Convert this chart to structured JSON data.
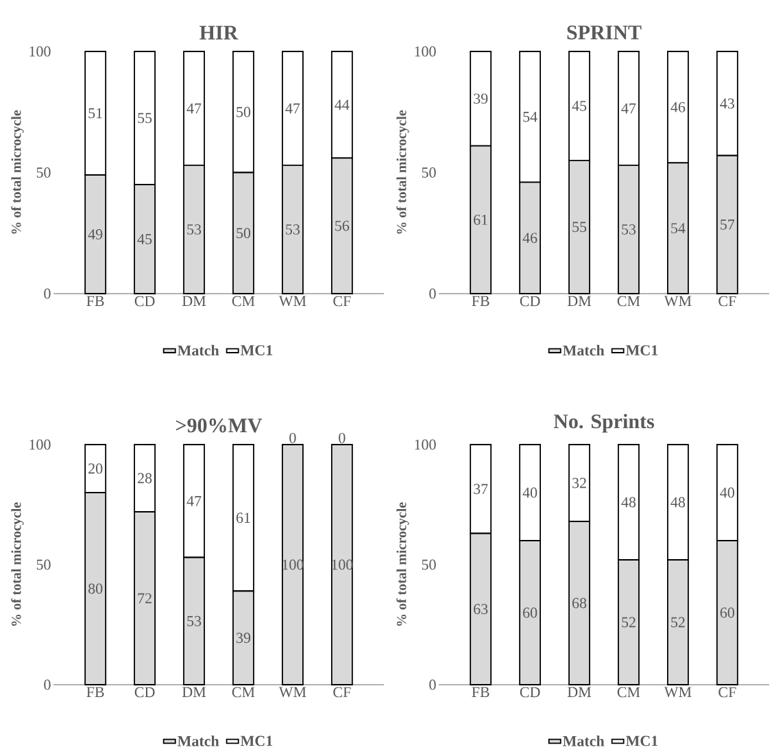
{
  "chart_data": [
    {
      "type": "bar",
      "stacked": true,
      "title": "HIR",
      "ylabel": "% of total microcycle",
      "categories": [
        "FB",
        "CD",
        "DM",
        "CM",
        "WM",
        "CF"
      ],
      "ylim": [
        0,
        100
      ],
      "yticks": [
        0,
        50,
        100
      ],
      "legend": "bottom",
      "data_labels": true,
      "series": [
        {
          "name": "Match",
          "color": "#d9d9d9",
          "values": [
            49,
            45,
            53,
            50,
            53,
            56
          ]
        },
        {
          "name": "MC1",
          "color": "#ffffff",
          "values": [
            51,
            55,
            47,
            50,
            47,
            44
          ]
        }
      ]
    },
    {
      "type": "bar",
      "stacked": true,
      "title": "SPRINT",
      "ylabel": "% of total microcycle",
      "categories": [
        "FB",
        "CD",
        "DM",
        "CM",
        "WM",
        "CF"
      ],
      "ylim": [
        0,
        100
      ],
      "yticks": [
        0,
        50,
        100
      ],
      "legend": "bottom",
      "data_labels": true,
      "series": [
        {
          "name": "Match",
          "color": "#d9d9d9",
          "values": [
            61,
            46,
            55,
            53,
            54,
            57
          ]
        },
        {
          "name": "MC1",
          "color": "#ffffff",
          "values": [
            39,
            54,
            45,
            47,
            46,
            43
          ]
        }
      ]
    },
    {
      "type": "bar",
      "stacked": true,
      "title": ">90%MV",
      "ylabel": "% of total microcycle",
      "categories": [
        "FB",
        "CD",
        "DM",
        "CM",
        "WM",
        "CF"
      ],
      "ylim": [
        0,
        100
      ],
      "yticks": [
        0,
        50,
        100
      ],
      "legend": "bottom",
      "data_labels": true,
      "series": [
        {
          "name": "Match",
          "color": "#d9d9d9",
          "values": [
            80,
            72,
            53,
            39,
            100,
            100
          ]
        },
        {
          "name": "MC1",
          "color": "#ffffff",
          "values": [
            20,
            28,
            47,
            61,
            0,
            0
          ]
        }
      ]
    },
    {
      "type": "bar",
      "stacked": true,
      "title": "No. Sprints",
      "ylabel": "% of total microcycle",
      "categories": [
        "FB",
        "CD",
        "DM",
        "CM",
        "WM",
        "CF"
      ],
      "ylim": [
        0,
        100
      ],
      "yticks": [
        0,
        50,
        100
      ],
      "legend": "bottom",
      "data_labels": true,
      "series": [
        {
          "name": "Match",
          "color": "#d9d9d9",
          "values": [
            63,
            60,
            68,
            52,
            52,
            60
          ]
        },
        {
          "name": "MC1",
          "color": "#ffffff",
          "values": [
            37,
            40,
            32,
            48,
            48,
            40
          ]
        }
      ]
    }
  ]
}
